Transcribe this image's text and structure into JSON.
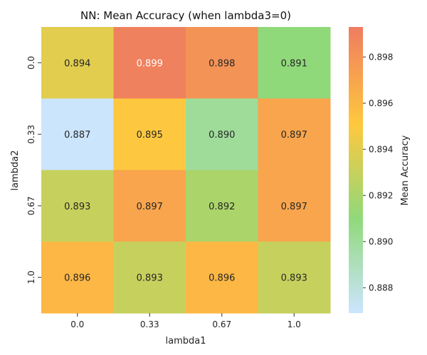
{
  "chart_data": {
    "type": "heatmap",
    "title": "NN: Mean Accuracy (when lambda3=0)",
    "xlabel": "lambda1",
    "ylabel": "lambda2",
    "x_categories": [
      "0.0",
      "0.33",
      "0.67",
      "1.0"
    ],
    "y_categories": [
      "0.0",
      "0.33",
      "0.67",
      "1.0"
    ],
    "values": [
      [
        0.894,
        0.899,
        0.898,
        0.891
      ],
      [
        0.887,
        0.895,
        0.89,
        0.897
      ],
      [
        0.893,
        0.897,
        0.892,
        0.897
      ],
      [
        0.896,
        0.893,
        0.896,
        0.893
      ]
    ],
    "colorbar": {
      "label": "Mean Accuracy",
      "range": [
        0.8869,
        0.8993
      ],
      "ticks": [
        "0.888",
        "0.890",
        "0.892",
        "0.894",
        "0.896",
        "0.898"
      ],
      "colormap": [
        "#cce5ff",
        "#90d97a",
        "#ffc83e",
        "#ef7c60"
      ]
    }
  }
}
